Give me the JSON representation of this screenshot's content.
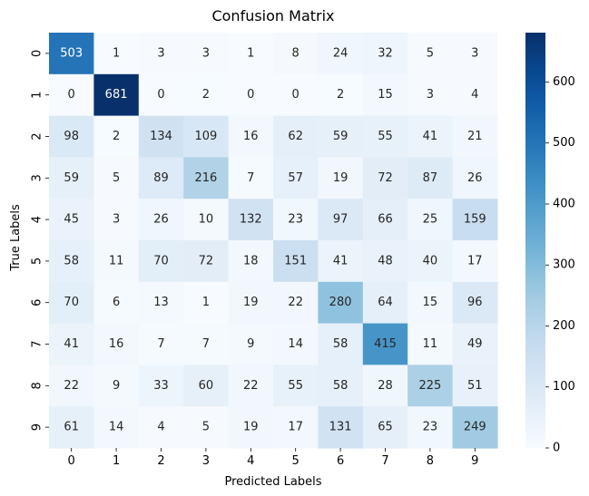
{
  "chart_data": {
    "type": "heatmap",
    "title": "Confusion Matrix",
    "xlabel": "Predicted Labels",
    "ylabel": "True Labels",
    "x_categories": [
      "0",
      "1",
      "2",
      "3",
      "4",
      "5",
      "6",
      "7",
      "8",
      "9"
    ],
    "y_categories": [
      "0",
      "1",
      "2",
      "3",
      "4",
      "5",
      "6",
      "7",
      "8",
      "9"
    ],
    "values": [
      [
        503,
        1,
        3,
        3,
        1,
        8,
        24,
        32,
        5,
        3
      ],
      [
        0,
        681,
        0,
        2,
        0,
        0,
        2,
        15,
        3,
        4
      ],
      [
        98,
        2,
        134,
        109,
        16,
        62,
        59,
        55,
        41,
        21
      ],
      [
        59,
        5,
        89,
        216,
        7,
        57,
        19,
        72,
        87,
        26
      ],
      [
        45,
        3,
        26,
        10,
        132,
        23,
        97,
        66,
        25,
        159
      ],
      [
        58,
        11,
        70,
        72,
        18,
        151,
        41,
        48,
        40,
        17
      ],
      [
        70,
        6,
        13,
        1,
        19,
        22,
        280,
        64,
        15,
        96
      ],
      [
        41,
        16,
        7,
        7,
        9,
        14,
        58,
        415,
        11,
        49
      ],
      [
        22,
        9,
        33,
        60,
        22,
        55,
        58,
        28,
        225,
        51
      ],
      [
        61,
        14,
        4,
        5,
        19,
        17,
        131,
        65,
        23,
        249
      ]
    ],
    "colormap": "Blues",
    "colorbar": {
      "range": [
        0,
        681
      ],
      "ticks": [
        0,
        100,
        200,
        300,
        400,
        500,
        600
      ]
    }
  }
}
